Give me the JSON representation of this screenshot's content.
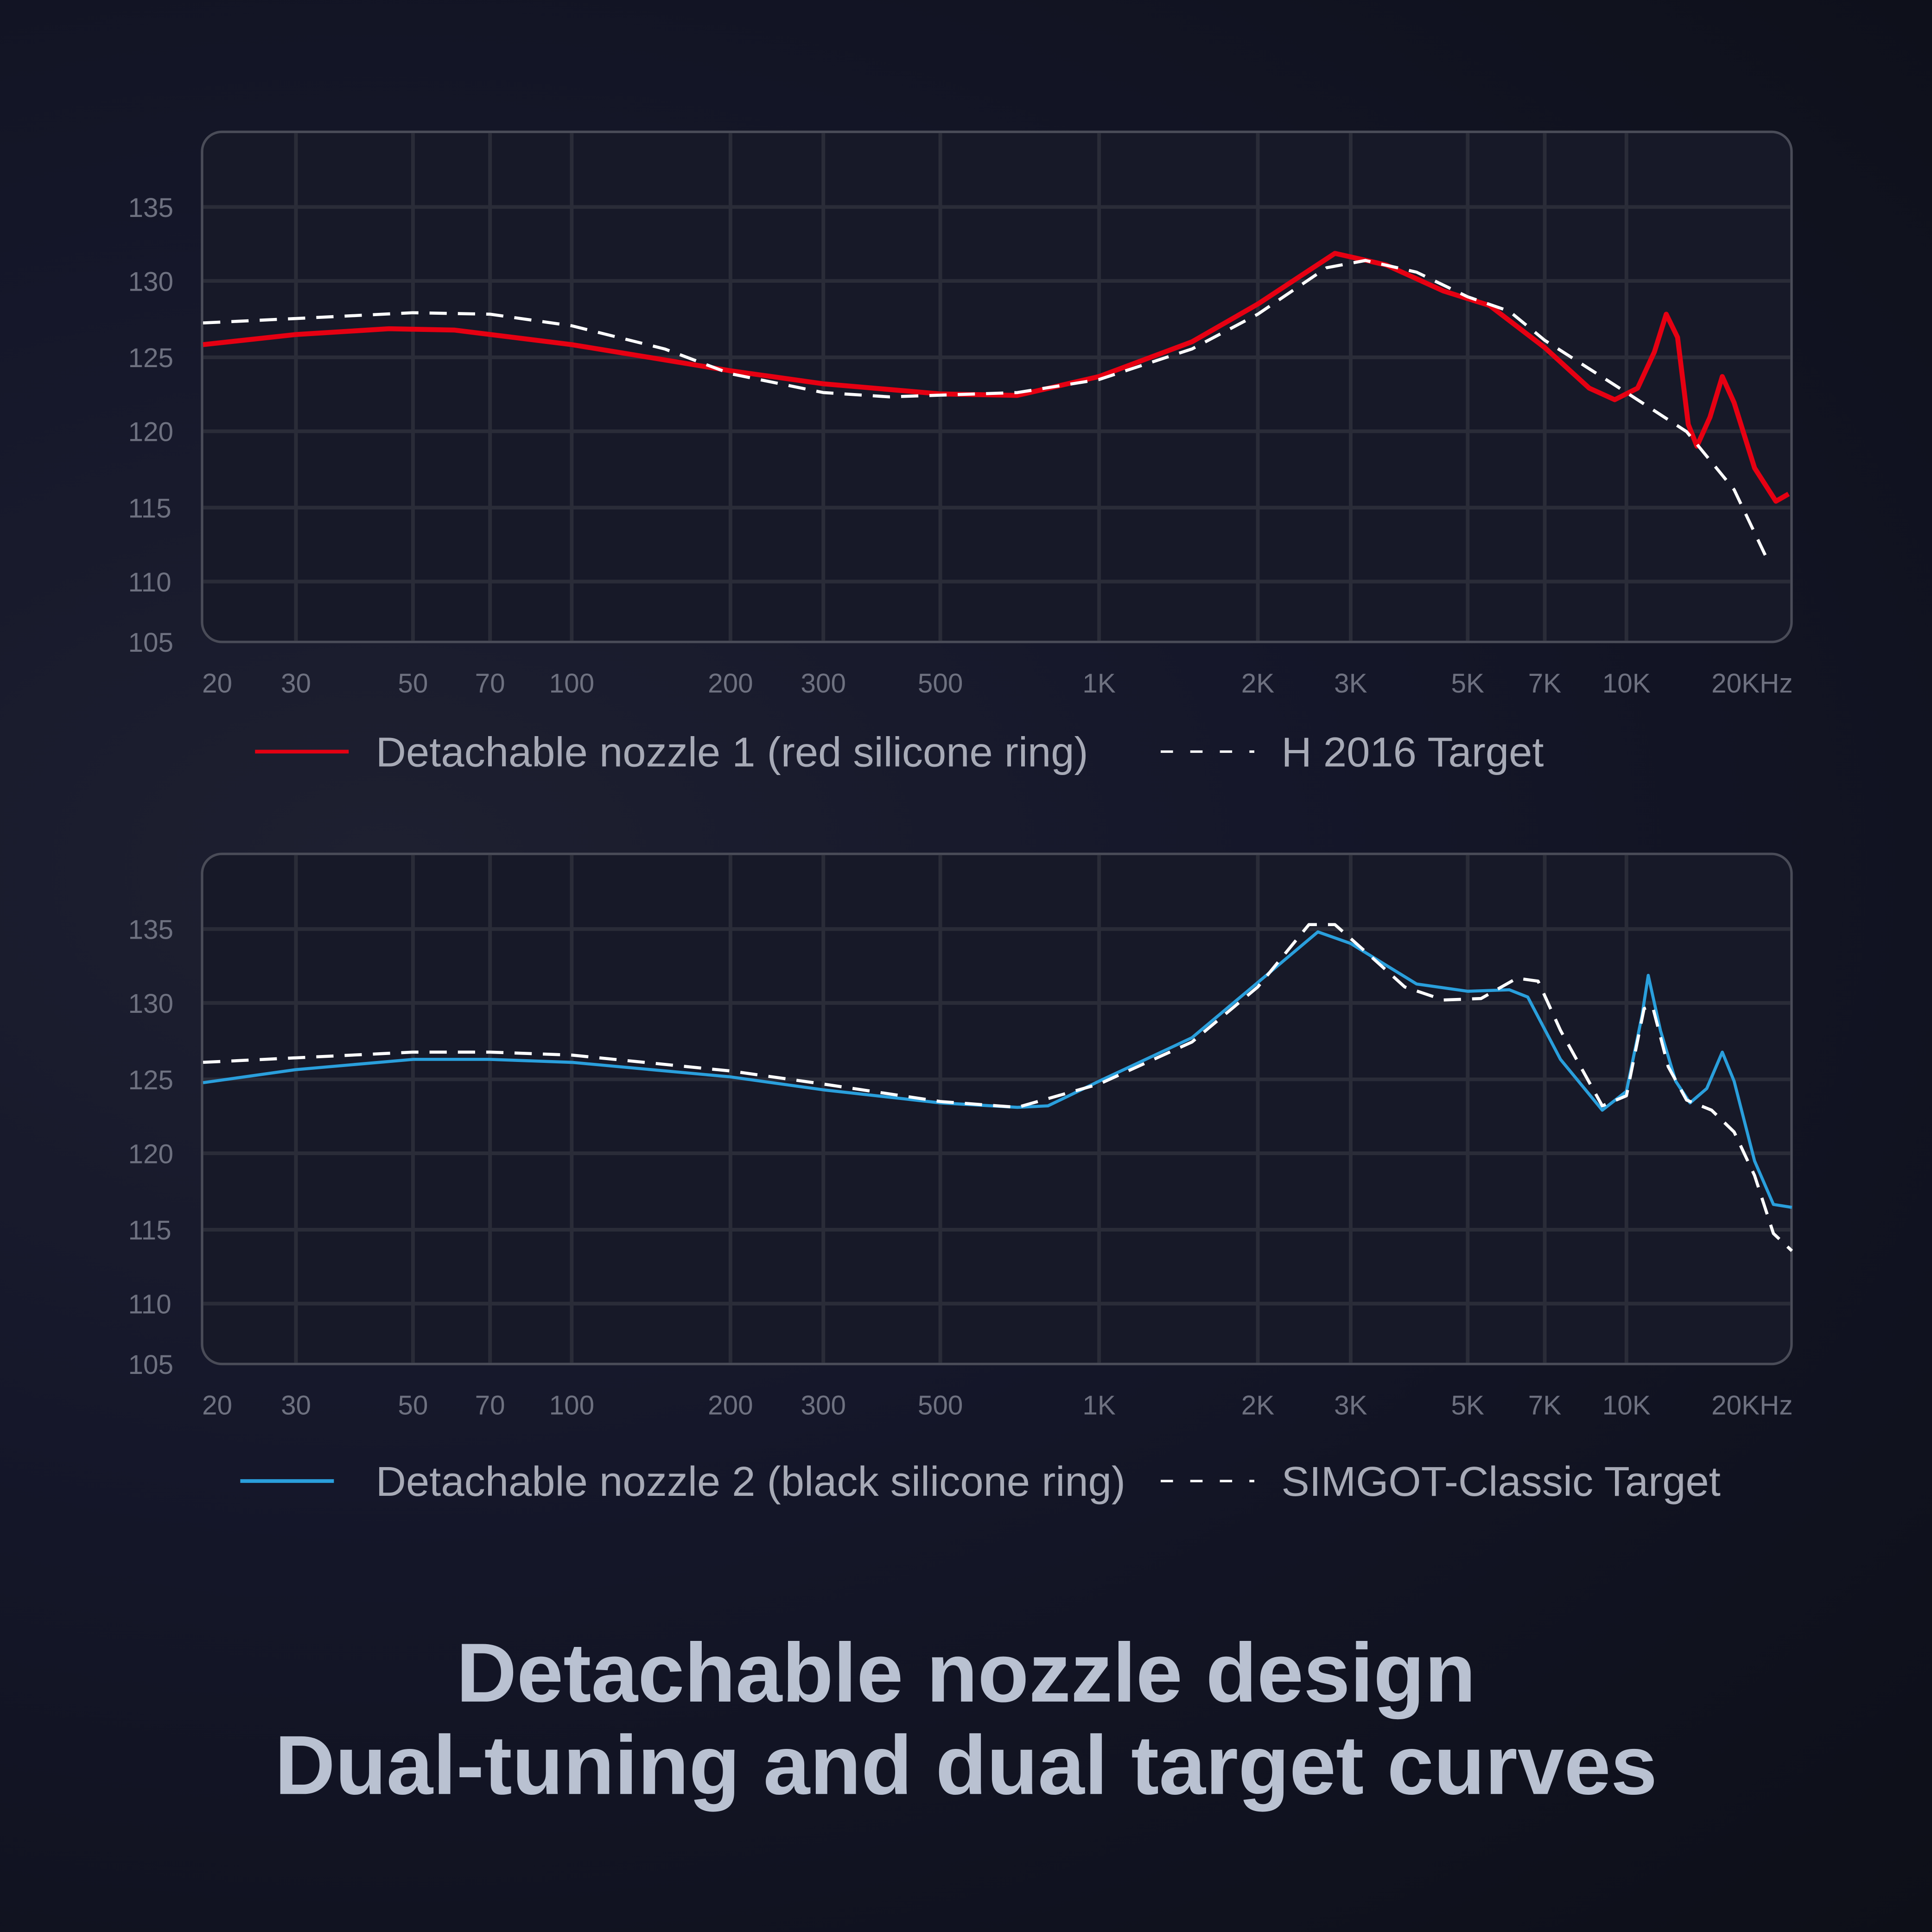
{
  "chart_data": [
    {
      "type": "line",
      "xscale": "log",
      "xlim": [
        20,
        20600
      ],
      "ylim": [
        105,
        138
      ],
      "grid": true,
      "yticks": [
        "105",
        "110",
        "115",
        "120",
        "125",
        "130",
        "135"
      ],
      "xticks": [
        "20",
        "30",
        "50",
        "70",
        "100",
        "200",
        "300",
        "500",
        "1K",
        "2K",
        "3K",
        "5K",
        "7K",
        "10K",
        "20KHz"
      ],
      "series": [
        {
          "name": "Detachable nozzle 1 (red silicone ring)",
          "color": "#e60012",
          "style": "solid",
          "points": [
            [
              20,
              125.5
            ],
            [
              30,
              126.2
            ],
            [
              45,
              126.6
            ],
            [
              60,
              126.5
            ],
            [
              100,
              125.5
            ],
            [
              200,
              123.7
            ],
            [
              300,
              122.8
            ],
            [
              500,
              122.1
            ],
            [
              700,
              122
            ],
            [
              1000,
              123.3
            ],
            [
              1500,
              125.7
            ],
            [
              2000,
              128.3
            ],
            [
              2800,
              131.8
            ],
            [
              3500,
              131
            ],
            [
              4500,
              129.2
            ],
            [
              5500,
              128.2
            ],
            [
              7000,
              125.3
            ],
            [
              8500,
              122.5
            ],
            [
              9500,
              121.7
            ],
            [
              10500,
              122.5
            ],
            [
              11300,
              125
            ],
            [
              11900,
              127.6
            ],
            [
              12500,
              126
            ],
            [
              13100,
              120
            ],
            [
              13600,
              118.5
            ],
            [
              14400,
              120.5
            ],
            [
              15200,
              123.3
            ],
            [
              16000,
              121.5
            ],
            [
              17500,
              117
            ],
            [
              19200,
              114.7
            ],
            [
              20300,
              115.2
            ]
          ]
        },
        {
          "name": "H 2016 Target",
          "color": "#ffffff",
          "style": "dashed",
          "points": [
            [
              20,
              127
            ],
            [
              30,
              127.3
            ],
            [
              50,
              127.7
            ],
            [
              70,
              127.6
            ],
            [
              100,
              126.8
            ],
            [
              150,
              125.2
            ],
            [
              200,
              123.5
            ],
            [
              300,
              122.2
            ],
            [
              400,
              121.9
            ],
            [
              700,
              122.2
            ],
            [
              1000,
              123.1
            ],
            [
              1500,
              125.2
            ],
            [
              2000,
              127.6
            ],
            [
              2700,
              130.8
            ],
            [
              3200,
              131.3
            ],
            [
              4000,
              130.5
            ],
            [
              5000,
              128.8
            ],
            [
              6000,
              127.8
            ],
            [
              7000,
              125.8
            ],
            [
              10000,
              122.2
            ],
            [
              13000,
              119.5
            ],
            [
              16000,
              115.5
            ],
            [
              18600,
              110.5
            ]
          ]
        }
      ]
    },
    {
      "type": "line",
      "xscale": "log",
      "xlim": [
        20,
        20600
      ],
      "ylim": [
        105,
        138
      ],
      "grid": true,
      "yticks": [
        "105",
        "110",
        "115",
        "120",
        "125",
        "130",
        "135"
      ],
      "xticks": [
        "20",
        "30",
        "50",
        "70",
        "100",
        "200",
        "300",
        "500",
        "1K",
        "2K",
        "3K",
        "5K",
        "7K",
        "10K",
        "20KHz"
      ],
      "series": [
        {
          "name": "Detachable nozzle 2 (black silicone ring)",
          "color": "#2a9fdc",
          "style": "solid",
          "points": [
            [
              20,
              124.4
            ],
            [
              30,
              125.3
            ],
            [
              50,
              126
            ],
            [
              70,
              126
            ],
            [
              100,
              125.8
            ],
            [
              200,
              124.8
            ],
            [
              300,
              123.9
            ],
            [
              500,
              123
            ],
            [
              700,
              122.7
            ],
            [
              800,
              122.8
            ],
            [
              1000,
              124.5
            ],
            [
              1500,
              127.5
            ],
            [
              2000,
              131.3
            ],
            [
              2600,
              134.8
            ],
            [
              3000,
              134
            ],
            [
              4000,
              131.2
            ],
            [
              5000,
              130.7
            ],
            [
              6000,
              130.8
            ],
            [
              6500,
              130.3
            ],
            [
              7500,
              126
            ],
            [
              9000,
              122.5
            ],
            [
              10000,
              123.8
            ],
            [
              10700,
              129
            ],
            [
              11000,
              131.8
            ],
            [
              11600,
              128
            ],
            [
              12400,
              124.5
            ],
            [
              13200,
              123
            ],
            [
              14200,
              124
            ],
            [
              15200,
              126.5
            ],
            [
              16000,
              124.5
            ],
            [
              17500,
              119
            ],
            [
              19000,
              116
            ],
            [
              20600,
              115.8
            ]
          ]
        },
        {
          "name": "SIMGOT-Classic Target",
          "color": "#ffffff",
          "style": "dashed",
          "points": [
            [
              20,
              125.8
            ],
            [
              50,
              126.5
            ],
            [
              70,
              126.5
            ],
            [
              100,
              126.3
            ],
            [
              200,
              125.2
            ],
            [
              300,
              124.3
            ],
            [
              500,
              123.1
            ],
            [
              700,
              122.7
            ],
            [
              1000,
              124.3
            ],
            [
              1500,
              127.2
            ],
            [
              2000,
              131
            ],
            [
              2500,
              135.3
            ],
            [
              2800,
              135.3
            ],
            [
              3300,
              133
            ],
            [
              3800,
              131
            ],
            [
              4500,
              130.1
            ],
            [
              5300,
              130.2
            ],
            [
              6200,
              131.6
            ],
            [
              6800,
              131.4
            ],
            [
              7500,
              128
            ],
            [
              9000,
              122.8
            ],
            [
              10000,
              123.5
            ],
            [
              10800,
              129.5
            ],
            [
              11200,
              129.7
            ],
            [
              12000,
              125.5
            ],
            [
              13000,
              123.2
            ],
            [
              14500,
              122.5
            ],
            [
              16000,
              121
            ],
            [
              17500,
              118
            ],
            [
              19000,
              114
            ],
            [
              20600,
              112.8
            ]
          ]
        }
      ]
    }
  ],
  "headline": {
    "line1": "Detachable nozzle design",
    "line2": "Dual-tuning and dual target curves"
  }
}
